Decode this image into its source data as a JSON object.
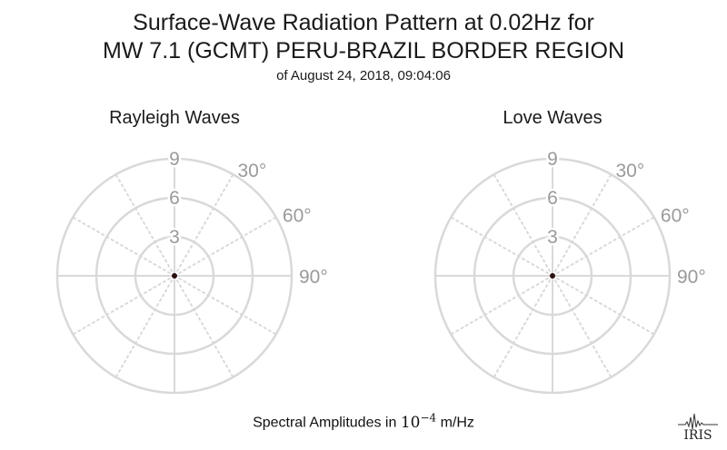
{
  "title": {
    "line1": "Surface-Wave Radiation Pattern at 0.02Hz for",
    "line2": "MW 7.1 (GCMT) PERU-BRAZIL BORDER REGION",
    "subtitle": "of August 24, 2018, 09:04:06"
  },
  "footer": {
    "prefix": "Spectral Amplitudes in ",
    "base": "10",
    "exponent": "−4",
    "unit": " m/Hz"
  },
  "logo_text": "IRIS",
  "colors": {
    "grid": "#d9d9d9",
    "tick_label": "#9a9a9a",
    "data": "#2b0f0f"
  },
  "chart_data": [
    {
      "type": "polar",
      "title": "Rayleigh Waves",
      "radial_ticks": [
        3,
        6,
        9
      ],
      "radial_range": [
        0,
        9
      ],
      "angle_ticks": [
        "30°",
        "60°",
        "90°"
      ],
      "angular_spokes_deg": [
        0,
        30,
        60,
        90,
        120,
        150,
        180,
        210,
        240,
        270,
        300,
        330
      ],
      "grid": true,
      "series": [
        {
          "amplitudes": [
            0,
            0,
            0,
            0,
            0,
            0,
            0,
            0,
            0,
            0,
            0,
            0
          ]
        }
      ]
    },
    {
      "type": "polar",
      "title": "Love Waves",
      "radial_ticks": [
        3,
        6,
        9
      ],
      "radial_range": [
        0,
        9
      ],
      "angle_ticks": [
        "30°",
        "60°",
        "90°"
      ],
      "angular_spokes_deg": [
        0,
        30,
        60,
        90,
        120,
        150,
        180,
        210,
        240,
        270,
        300,
        330
      ],
      "grid": true,
      "series": [
        {
          "amplitudes": [
            0,
            0,
            0,
            0,
            0,
            0,
            0,
            0,
            0,
            0,
            0,
            0
          ]
        }
      ]
    }
  ]
}
